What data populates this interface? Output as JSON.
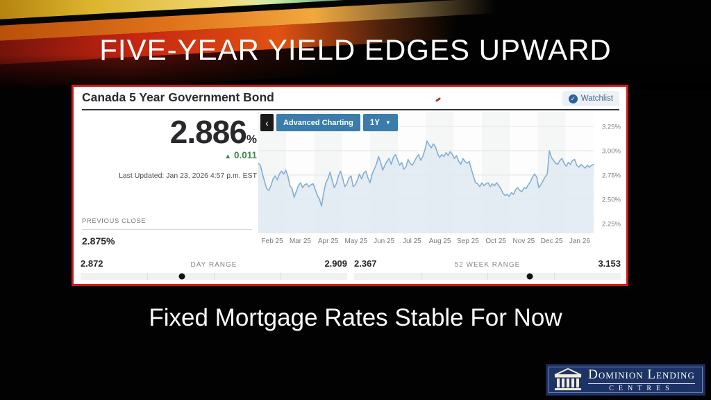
{
  "slide": {
    "title": "FIVE-YEAR YIELD EDGES UPWARD",
    "caption": "Fixed Mortgage Rates Stable For Now"
  },
  "quote_card": {
    "instrument": "Canada 5 Year Government Bond",
    "watchlist_label": "Watchlist",
    "watchlist_check_icon": "✓",
    "price": "2.886",
    "price_unit": "%",
    "change_arrow": "▲",
    "change": "0.011",
    "last_updated": "Last Updated: Jan 23, 2026 4:57 p.m. EST",
    "previous_close_label": "PREVIOUS CLOSE",
    "previous_close_value": "2.875%",
    "toolbar": {
      "back_icon": "‹",
      "advanced_charting_label": "Advanced Charting",
      "range_selected": "1Y",
      "caret_icon": "▼"
    },
    "day_range": {
      "label": "DAY RANGE",
      "low": "2.872",
      "high": "2.909",
      "marker_pct": 38
    },
    "week52_range": {
      "label": "52 WEEK RANGE",
      "low": "2.367",
      "high": "3.153",
      "marker_pct": 66
    }
  },
  "chart_data": {
    "type": "area",
    "title": "Canada 5 Year Government Bond yield, 1Y history",
    "legend": [],
    "grid": true,
    "x_tick_labels": [
      "Feb 25",
      "Mar 25",
      "Apr 25",
      "May 25",
      "Jun 25",
      "Jul 25",
      "Aug 25",
      "Sep 25",
      "Oct 25",
      "Nov 25",
      "Dec 25",
      "Jan 26"
    ],
    "y_ticks": [
      3.25,
      3.0,
      2.75,
      2.5,
      2.25
    ],
    "y_tick_labels": [
      "3.25%",
      "3.00%",
      "2.75%",
      "2.50%",
      "2.25%"
    ],
    "ylim": [
      2.15,
      3.4
    ],
    "line_color": "#84aed2",
    "fill_color": "#dfe9f2",
    "band_color": "#f5f6f6",
    "grid_color": "#e4e4e4",
    "values": [
      2.87,
      2.85,
      2.76,
      2.68,
      2.61,
      2.59,
      2.64,
      2.71,
      2.74,
      2.7,
      2.76,
      2.79,
      2.76,
      2.8,
      2.74,
      2.64,
      2.61,
      2.52,
      2.58,
      2.64,
      2.67,
      2.62,
      2.65,
      2.66,
      2.63,
      2.65,
      2.66,
      2.6,
      2.54,
      2.5,
      2.43,
      2.57,
      2.67,
      2.71,
      2.78,
      2.7,
      2.62,
      2.66,
      2.74,
      2.79,
      2.72,
      2.63,
      2.66,
      2.72,
      2.74,
      2.63,
      2.65,
      2.7,
      2.76,
      2.71,
      2.77,
      2.79,
      2.72,
      2.67,
      2.76,
      2.81,
      2.86,
      2.94,
      2.88,
      2.8,
      2.85,
      2.89,
      2.92,
      2.86,
      2.93,
      2.96,
      2.91,
      2.85,
      2.88,
      2.81,
      2.83,
      2.91,
      2.87,
      2.85,
      2.89,
      2.93,
      2.96,
      2.9,
      2.94,
      3.01,
      3.1,
      3.06,
      3.03,
      3.07,
      3.04,
      2.97,
      2.93,
      2.96,
      2.94,
      2.98,
      2.95,
      2.99,
      2.96,
      2.92,
      2.95,
      2.89,
      2.86,
      2.92,
      2.89,
      2.87,
      2.89,
      2.81,
      2.74,
      2.67,
      2.66,
      2.63,
      2.67,
      2.64,
      2.66,
      2.67,
      2.63,
      2.66,
      2.64,
      2.67,
      2.64,
      2.61,
      2.56,
      2.54,
      2.55,
      2.53,
      2.57,
      2.55,
      2.6,
      2.62,
      2.59,
      2.58,
      2.62,
      2.61,
      2.65,
      2.68,
      2.73,
      2.76,
      2.73,
      2.62,
      2.65,
      2.69,
      2.73,
      2.76,
      3.0,
      2.93,
      2.9,
      2.87,
      2.86,
      2.9,
      2.92,
      2.87,
      2.84,
      2.88,
      2.86,
      2.9,
      2.91,
      2.85,
      2.83,
      2.86,
      2.84,
      2.82,
      2.85,
      2.83,
      2.85,
      2.86
    ]
  },
  "logo": {
    "line1": "Dominion Lending",
    "line2": "Centres"
  }
}
